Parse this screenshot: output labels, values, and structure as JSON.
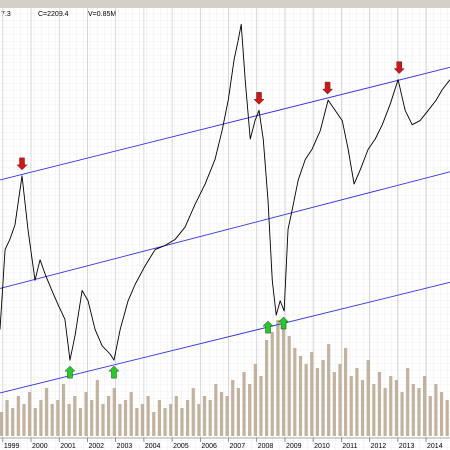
{
  "chart_data": {
    "type": "line",
    "header": [
      "7.3",
      "C=2209.4",
      "V=0.85M"
    ],
    "xlim": [
      1998.9,
      2014.85
    ],
    "xticks": [
      1999,
      2000,
      2001,
      2002,
      2003,
      2004,
      2005,
      2006,
      2007,
      2008,
      2009,
      2010,
      2011,
      2012,
      2013,
      2014
    ],
    "ylim": [
      500,
      2600
    ],
    "color": "#000000",
    "x": [
      1998.9,
      1999.08,
      1999.25,
      1999.43,
      1999.68,
      1999.89,
      2000.14,
      2000.32,
      2000.5,
      2000.74,
      2000.96,
      2001.2,
      2001.38,
      2001.56,
      2001.81,
      2002.02,
      2002.27,
      2002.52,
      2002.8,
      2002.94,
      2003.16,
      2003.44,
      2003.69,
      2004.04,
      2004.4,
      2004.75,
      2005.11,
      2005.46,
      2005.81,
      2006.17,
      2006.52,
      2006.77,
      2006.99,
      2007.2,
      2007.34,
      2007.45,
      2007.59,
      2007.77,
      2007.94,
      2008.08,
      2008.23,
      2008.4,
      2008.55,
      2008.69,
      2008.83,
      2008.97,
      2009.11,
      2009.25,
      2009.47,
      2009.72,
      2009.96,
      2010.25,
      2010.53,
      2010.78,
      2011.03,
      2011.24,
      2011.45,
      2011.67,
      2011.95,
      2012.2,
      2012.45,
      2012.73,
      2013.01,
      2013.26,
      2013.51,
      2013.79,
      2014.08,
      2014.36,
      2014.57,
      2014.85
    ],
    "values": [
      1040,
      1430,
      1480,
      1550,
      1790,
      1530,
      1280,
      1380,
      1310,
      1230,
      1160,
      1090,
      890,
      1010,
      1230,
      1180,
      1040,
      960,
      920,
      890,
      1040,
      1180,
      1260,
      1350,
      1430,
      1450,
      1480,
      1540,
      1650,
      1750,
      1870,
      2010,
      2160,
      2360,
      2450,
      2530,
      2260,
      1970,
      2060,
      2110,
      1970,
      1670,
      1280,
      1110,
      1180,
      1130,
      1530,
      1620,
      1770,
      1870,
      1920,
      2010,
      2160,
      2110,
      2060,
      1920,
      1750,
      1820,
      1920,
      1970,
      2040,
      2140,
      2260,
      2110,
      2040,
      2060,
      2110,
      2160,
      2210,
      2260
    ],
    "channels": {
      "color": "#3030e8",
      "lines": [
        {
          "x": [
            1998.9,
            2014.85
          ],
          "y": [
            1770,
            2320
          ]
        },
        {
          "x": [
            1998.9,
            2014.85
          ],
          "y": [
            1240,
            1810
          ]
        },
        {
          "x": [
            1998.9,
            2014.85
          ],
          "y": [
            730,
            1270
          ]
        }
      ]
    },
    "signals": [
      {
        "x": 1999.68,
        "y": 1790,
        "direction": "down",
        "color": "#e01010"
      },
      {
        "x": 2008.08,
        "y": 2110,
        "direction": "down",
        "color": "#e01010"
      },
      {
        "x": 2010.51,
        "y": 2160,
        "direction": "down",
        "color": "#e01010"
      },
      {
        "x": 2013.05,
        "y": 2260,
        "direction": "down",
        "color": "#e01010"
      },
      {
        "x": 2001.38,
        "y": 890,
        "direction": "up",
        "color": "#20d020"
      },
      {
        "x": 2002.94,
        "y": 890,
        "direction": "up",
        "color": "#20d020"
      },
      {
        "x": 2008.4,
        "y": 1110,
        "direction": "up",
        "color": "#20d020"
      },
      {
        "x": 2008.95,
        "y": 1130,
        "direction": "up",
        "color": "#20d020"
      }
    ],
    "volume": {
      "color": "#b8a48c",
      "ylim": [
        0,
        4.4
      ],
      "x": [
        1998.95,
        1999.15,
        1999.35,
        1999.55,
        1999.75,
        1999.95,
        2000.15,
        2000.35,
        2000.55,
        2000.75,
        2000.95,
        2001.15,
        2001.35,
        2001.55,
        2001.75,
        2001.95,
        2002.15,
        2002.35,
        2002.55,
        2002.75,
        2002.95,
        2003.15,
        2003.35,
        2003.55,
        2003.75,
        2003.95,
        2004.15,
        2004.35,
        2004.55,
        2004.75,
        2004.95,
        2005.15,
        2005.35,
        2005.55,
        2005.75,
        2005.95,
        2006.15,
        2006.35,
        2006.55,
        2006.75,
        2006.95,
        2007.15,
        2007.35,
        2007.55,
        2007.75,
        2007.95,
        2008.15,
        2008.35,
        2008.55,
        2008.75,
        2008.95,
        2009.15,
        2009.35,
        2009.55,
        2009.75,
        2009.95,
        2010.15,
        2010.35,
        2010.55,
        2010.75,
        2010.95,
        2011.15,
        2011.35,
        2011.55,
        2011.75,
        2011.95,
        2012.15,
        2012.35,
        2012.55,
        2012.75,
        2012.95,
        2013.15,
        2013.35,
        2013.55,
        2013.75,
        2013.95,
        2014.15,
        2014.35,
        2014.55,
        2014.75
      ],
      "values": [
        0.6,
        0.9,
        0.7,
        1.0,
        0.8,
        1.1,
        0.7,
        0.9,
        1.2,
        0.8,
        0.9,
        1.3,
        0.8,
        1.0,
        0.7,
        1.1,
        0.9,
        1.4,
        0.8,
        1.0,
        1.2,
        0.8,
        0.9,
        1.1,
        0.7,
        0.8,
        1.0,
        0.6,
        0.9,
        0.7,
        0.8,
        1.0,
        0.7,
        0.9,
        1.2,
        0.8,
        1.0,
        0.9,
        1.3,
        1.1,
        1.0,
        1.4,
        1.2,
        1.6,
        1.3,
        1.8,
        1.5,
        2.4,
        2.6,
        2.9,
        2.7,
        2.5,
        2.2,
        2.0,
        1.8,
        2.1,
        1.7,
        1.9,
        2.3,
        1.6,
        1.8,
        2.2,
        1.5,
        1.7,
        1.4,
        1.9,
        1.3,
        1.6,
        1.2,
        1.5,
        1.4,
        1.1,
        1.7,
        1.3,
        1.2,
        1.5,
        1.0,
        1.3,
        1.1,
        0.9
      ]
    },
    "grid": true
  }
}
